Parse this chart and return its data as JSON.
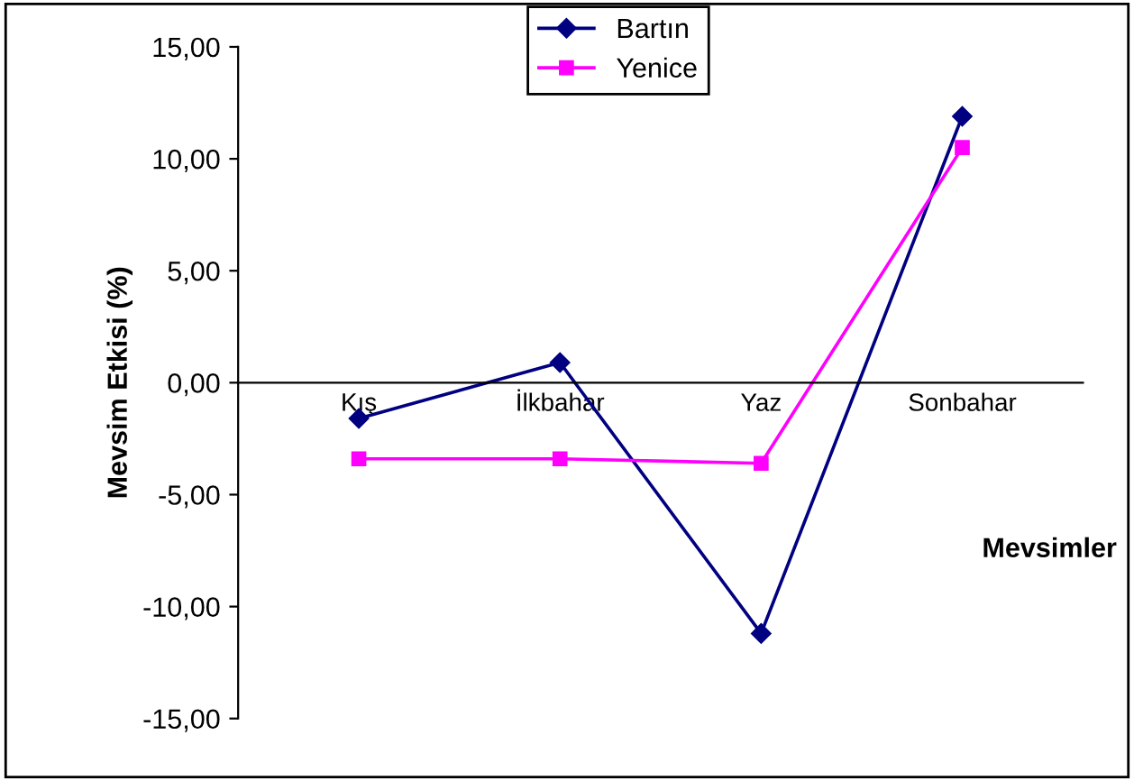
{
  "chart_data": {
    "type": "line",
    "xlabel": "Mevsimler",
    "ylabel": "Mevsim Etkisi (%)",
    "categories": [
      "Kış",
      "İlkbahar",
      "Yaz",
      "Sonbahar"
    ],
    "series": [
      {
        "name": "Bartın",
        "color": "#000080",
        "values": [
          -1.6,
          0.9,
          -11.2,
          11.9
        ],
        "marker": "diamond"
      },
      {
        "name": "Yenice",
        "color": "#ff00ff",
        "values": [
          -3.4,
          -3.4,
          -3.6,
          10.5
        ],
        "marker": "square"
      }
    ],
    "ylim": [
      -15,
      15
    ],
    "yticks": [
      {
        "value": -15,
        "label": "-15,00"
      },
      {
        "value": -10,
        "label": "-10,00"
      },
      {
        "value": -5,
        "label": "-5,00"
      },
      {
        "value": 0,
        "label": "0,00"
      },
      {
        "value": 5,
        "label": "5,00"
      },
      {
        "value": 10,
        "label": "10,00"
      },
      {
        "value": 15,
        "label": "15,00"
      }
    ],
    "grid": false,
    "legend": "top",
    "line_style": "solid"
  }
}
